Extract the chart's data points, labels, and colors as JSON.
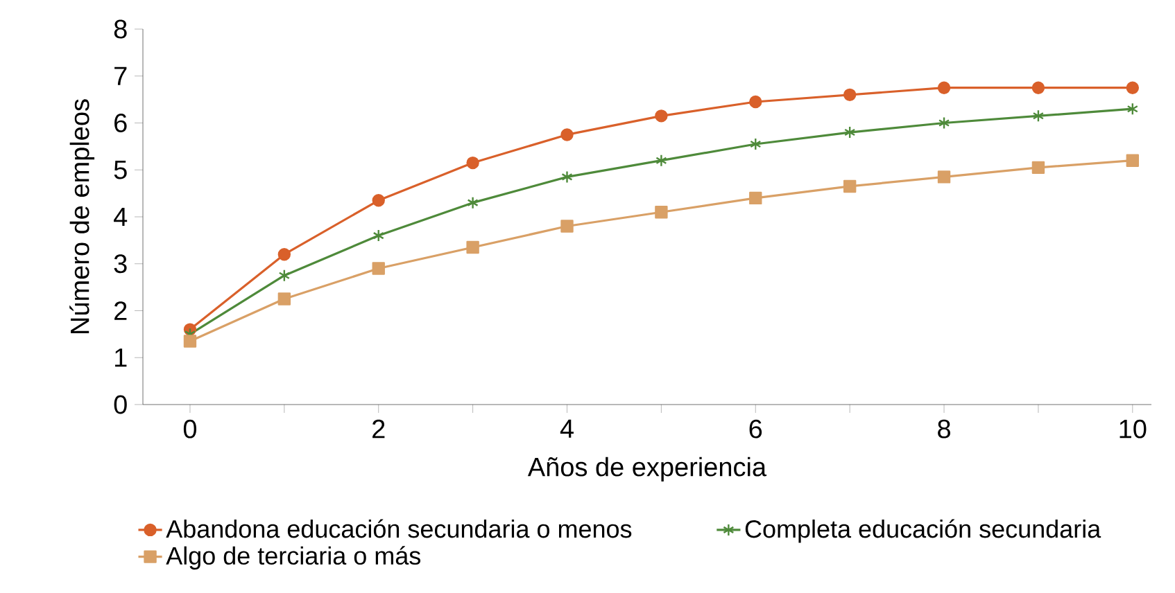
{
  "chart_data": {
    "type": "line",
    "xlabel": "Años de experiencia",
    "ylabel": "Número de empleos",
    "x": [
      0,
      1,
      2,
      3,
      4,
      5,
      6,
      7,
      8,
      9,
      10
    ],
    "series": [
      {
        "name": "Abandona educación secundaria o menos",
        "color": "#d9602a",
        "marker": "circle",
        "values": [
          1.6,
          3.2,
          4.35,
          5.15,
          5.75,
          6.15,
          6.45,
          6.6,
          6.75,
          6.75,
          6.75
        ]
      },
      {
        "name": "Completa educación secundaria",
        "color": "#4e8a3a",
        "marker": "cross",
        "values": [
          1.5,
          2.75,
          3.6,
          4.3,
          4.85,
          5.2,
          5.55,
          5.8,
          6.0,
          6.15,
          6.3
        ]
      },
      {
        "name": "Algo de terciaria o más",
        "color": "#d9a066",
        "marker": "square",
        "values": [
          1.35,
          2.25,
          2.9,
          3.35,
          3.8,
          4.1,
          4.4,
          4.65,
          4.85,
          5.05,
          5.2
        ]
      }
    ],
    "xlim": [
      -0.5,
      10.2
    ],
    "ylim": [
      0,
      8
    ],
    "xticks": [
      0,
      {
        "value": 1,
        "label": null
      },
      2,
      {
        "value": 3,
        "label": null
      },
      4,
      {
        "value": 5,
        "label": null
      },
      6,
      {
        "value": 7,
        "label": null
      },
      8,
      {
        "value": 9,
        "label": null
      },
      10
    ],
    "yticks": [
      0,
      1,
      2,
      3,
      4,
      5,
      6,
      7,
      8
    ],
    "legend": "bottom",
    "line_style": "solid",
    "grid": false
  }
}
